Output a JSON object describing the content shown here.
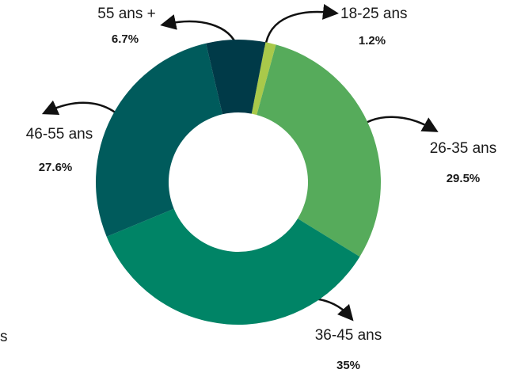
{
  "chart_data": {
    "type": "donut",
    "categories": [
      "18-25 ans",
      "26-35 ans",
      "36-45 ans",
      "46-55 ans",
      "55 ans +"
    ],
    "values": [
      1.2,
      29.5,
      35,
      27.6,
      6.7
    ],
    "value_labels": [
      "1.2%",
      "29.5%",
      "35%",
      "27.6%",
      "6.7%"
    ],
    "colors": [
      "#a9c94a",
      "#56ab5b",
      "#008466",
      "#005b5c",
      "#003a48"
    ],
    "annotation": "s"
  }
}
